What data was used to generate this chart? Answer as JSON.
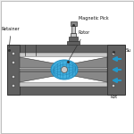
{
  "bg_color": "#f2f2f2",
  "white": "#ffffff",
  "dark_gray": "#606060",
  "mid_gray": "#888888",
  "light_gray": "#c8c8c8",
  "body_dark": "#707070",
  "rotor_blue": "#3aaddf",
  "rotor_blue2": "#5bbde8",
  "arrow_blue": "#2299cc",
  "line_color": "#333333",
  "label_color": "#111111",
  "labels": {
    "retainer": "Retainer",
    "magnetic": "Magnetic Pick",
    "rotor": "Rotor",
    "support": "Su",
    "rot": "Rot"
  },
  "fig_bg": "#ececec"
}
